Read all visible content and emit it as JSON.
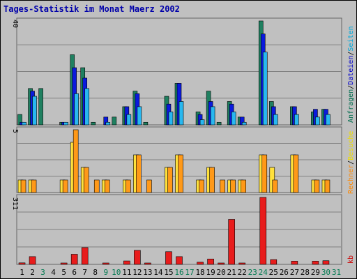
{
  "chart_data": [
    {
      "type": "bar",
      "title": "Tages-Statistik im Monat Maerz 2002",
      "ylabel_max": "40",
      "ylim": [
        0,
        40
      ],
      "side_label": [
        {
          "text": "Anfragen",
          "color": "#006E4F"
        },
        {
          "text": "/",
          "color": "#000000"
        },
        {
          "text": "Dateien",
          "color": "#0000CC"
        },
        {
          "text": "/",
          "color": "#000000"
        },
        {
          "text": "Seiten",
          "color": "#00AADD"
        }
      ],
      "categories": [
        "1",
        "2",
        "3",
        "4",
        "5",
        "6",
        "7",
        "8",
        "9",
        "10",
        "11",
        "12",
        "13",
        "14",
        "15",
        "16",
        "17",
        "18",
        "19",
        "20",
        "21",
        "22",
        "23",
        "24",
        "25",
        "26",
        "27",
        "28",
        "29",
        "30",
        "31"
      ],
      "series": [
        {
          "name": "Anfragen",
          "color": "#1F8060",
          "values": [
            4,
            14,
            14,
            0,
            1,
            27,
            22,
            1,
            0,
            3,
            7,
            13,
            1,
            0,
            11,
            16,
            0,
            5,
            13,
            1,
            9,
            3,
            0,
            40,
            9,
            0,
            7,
            0,
            5,
            6,
            0
          ]
        },
        {
          "name": "Dateien",
          "color": "#0A1ADD",
          "values": [
            1,
            13,
            0,
            0,
            1,
            22,
            18,
            0,
            3,
            0,
            7,
            12,
            0,
            0,
            8,
            16,
            0,
            4,
            9,
            0,
            8,
            3,
            0,
            35,
            7,
            0,
            7,
            0,
            6,
            6,
            0
          ]
        },
        {
          "name": "Seiten",
          "color": "#28B8F0",
          "values": [
            1,
            11,
            0,
            0,
            1,
            12,
            14,
            0,
            1,
            0,
            4,
            7,
            0,
            0,
            5,
            9,
            0,
            2,
            7,
            0,
            5,
            1,
            0,
            28,
            4,
            0,
            4,
            0,
            3,
            4,
            0
          ]
        }
      ]
    },
    {
      "type": "bar",
      "ylabel_max": "5",
      "ylim": [
        0,
        5
      ],
      "side_label": [
        {
          "text": "Rechner",
          "color": "#FF8800"
        },
        {
          "text": "/",
          "color": "#000000"
        },
        {
          "text": "Besuche",
          "color": "#EEDD00"
        }
      ],
      "categories": [
        "1",
        "2",
        "3",
        "4",
        "5",
        "6",
        "7",
        "8",
        "9",
        "10",
        "11",
        "12",
        "13",
        "14",
        "15",
        "16",
        "17",
        "18",
        "19",
        "20",
        "21",
        "22",
        "23",
        "24",
        "25",
        "26",
        "27",
        "28",
        "29",
        "30",
        "31"
      ],
      "series": [
        {
          "name": "Besuche",
          "color": "#FFE13C",
          "values": [
            1,
            1,
            0,
            0,
            1,
            4,
            2,
            0,
            1,
            0,
            1,
            3,
            0,
            0,
            2,
            3,
            0,
            1,
            2,
            0,
            1,
            1,
            0,
            3,
            2,
            0,
            3,
            0,
            1,
            1,
            0
          ]
        },
        {
          "name": "Rechner",
          "color": "#FF9918",
          "values": [
            1,
            1,
            0,
            0,
            1,
            5,
            2,
            1,
            1,
            0,
            1,
            3,
            1,
            0,
            2,
            3,
            0,
            1,
            2,
            1,
            1,
            1,
            0,
            3,
            1,
            0,
            3,
            0,
            1,
            1,
            0
          ]
        }
      ]
    },
    {
      "type": "bar",
      "ylabel_max": "311",
      "ylim": [
        0,
        311
      ],
      "side_label": [
        {
          "text": "kb",
          "color": "#CC0000"
        }
      ],
      "categories": [
        "1",
        "2",
        "3",
        "4",
        "5",
        "6",
        "7",
        "8",
        "9",
        "10",
        "11",
        "12",
        "13",
        "14",
        "15",
        "16",
        "17",
        "18",
        "19",
        "20",
        "21",
        "22",
        "23",
        "24",
        "25",
        "26",
        "27",
        "28",
        "29",
        "30",
        "31"
      ],
      "series": [
        {
          "name": "kb",
          "color": "#E81C1C",
          "values": [
            7,
            36,
            0,
            0,
            6,
            47,
            78,
            0,
            6,
            0,
            16,
            65,
            5,
            0,
            59,
            36,
            0,
            10,
            25,
            6,
            209,
            6,
            0,
            311,
            22,
            0,
            15,
            0,
            15,
            17,
            0
          ]
        }
      ]
    }
  ],
  "x_labels": [
    {
      "text": "1",
      "color": "#000000"
    },
    {
      "text": "2",
      "color": "#000000"
    },
    {
      "text": "3",
      "color": "#007A50"
    },
    {
      "text": "4",
      "color": "#000000"
    },
    {
      "text": "5",
      "color": "#000000"
    },
    {
      "text": "6",
      "color": "#000000"
    },
    {
      "text": "7",
      "color": "#000000"
    },
    {
      "text": "8",
      "color": "#000000"
    },
    {
      "text": "9",
      "color": "#007A50"
    },
    {
      "text": "10",
      "color": "#007A50"
    },
    {
      "text": "11",
      "color": "#000000"
    },
    {
      "text": "12",
      "color": "#000000"
    },
    {
      "text": "13",
      "color": "#000000"
    },
    {
      "text": "14",
      "color": "#000000"
    },
    {
      "text": "15",
      "color": "#000000"
    },
    {
      "text": "16",
      "color": "#007A50"
    },
    {
      "text": "17",
      "color": "#007A50"
    },
    {
      "text": "18",
      "color": "#000000"
    },
    {
      "text": "19",
      "color": "#000000"
    },
    {
      "text": "20",
      "color": "#000000"
    },
    {
      "text": "21",
      "color": "#000000"
    },
    {
      "text": "22",
      "color": "#000000"
    },
    {
      "text": "23",
      "color": "#007A50"
    },
    {
      "text": "24",
      "color": "#007A50"
    },
    {
      "text": "25",
      "color": "#000000"
    },
    {
      "text": "26",
      "color": "#000000"
    },
    {
      "text": "27",
      "color": "#000000"
    },
    {
      "text": "28",
      "color": "#000000"
    },
    {
      "text": "29",
      "color": "#000000"
    },
    {
      "text": "30",
      "color": "#007A50"
    },
    {
      "text": "31",
      "color": "#007A50"
    }
  ],
  "title_color": "#0000AA",
  "grid": true
}
